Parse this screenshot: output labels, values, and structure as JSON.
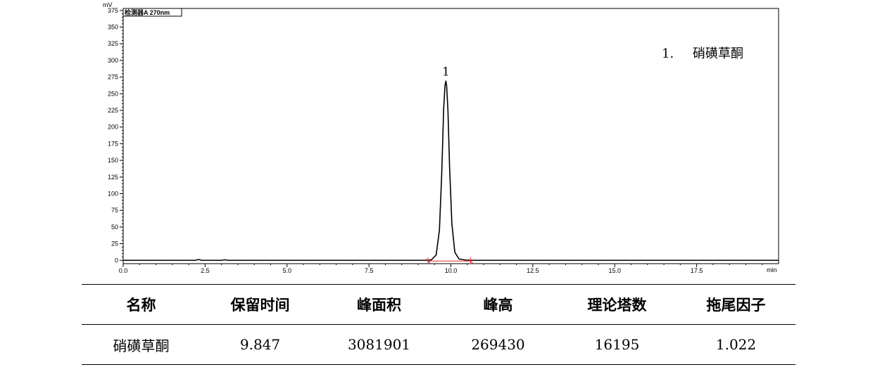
{
  "chart_data": {
    "type": "line",
    "y_unit": "mV",
    "x_unit": "min",
    "detector": "检测器A 270nm",
    "xlim": [
      0.0,
      20.0
    ],
    "ylim": [
      -5,
      378
    ],
    "x_ticks": [
      "0.0",
      "2.5",
      "5.0",
      "7.5",
      "10.0",
      "12.5",
      "15.0",
      "17.5"
    ],
    "y_ticks": [
      "0",
      "25",
      "50",
      "75",
      "100",
      "125",
      "150",
      "175",
      "200",
      "225",
      "250",
      "275",
      "300",
      "325",
      "350",
      "375"
    ],
    "series": [
      {
        "x": [
          0.0,
          2.2,
          2.3,
          2.4,
          3.0,
          3.1,
          3.2,
          9.2,
          9.4,
          9.55,
          9.65,
          9.72,
          9.78,
          9.82,
          9.847,
          9.87,
          9.91,
          9.96,
          10.03,
          10.12,
          10.25,
          10.5,
          20.0
        ],
        "y": [
          0,
          0,
          1.2,
          0,
          0,
          0.8,
          0,
          0,
          0.5,
          8,
          45,
          130,
          228,
          262,
          269,
          262,
          225,
          140,
          55,
          12,
          2,
          0,
          0
        ]
      }
    ],
    "peaks": [
      {
        "label": "1",
        "rt": 9.847,
        "height_mv": 269
      }
    ],
    "baseline": {
      "start_x": 9.3,
      "end_x": 10.6,
      "color": "#e8262b"
    },
    "legend": [
      "1.",
      "硝磺草酮"
    ],
    "grid": false
  },
  "table": {
    "headers": [
      "名称",
      "保留时间",
      "峰面积",
      "峰高",
      "理论塔数",
      "拖尾因子"
    ],
    "rows": [
      [
        "硝磺草酮",
        "9.847",
        "3081901",
        "269430",
        "16195",
        "1.022"
      ]
    ]
  }
}
